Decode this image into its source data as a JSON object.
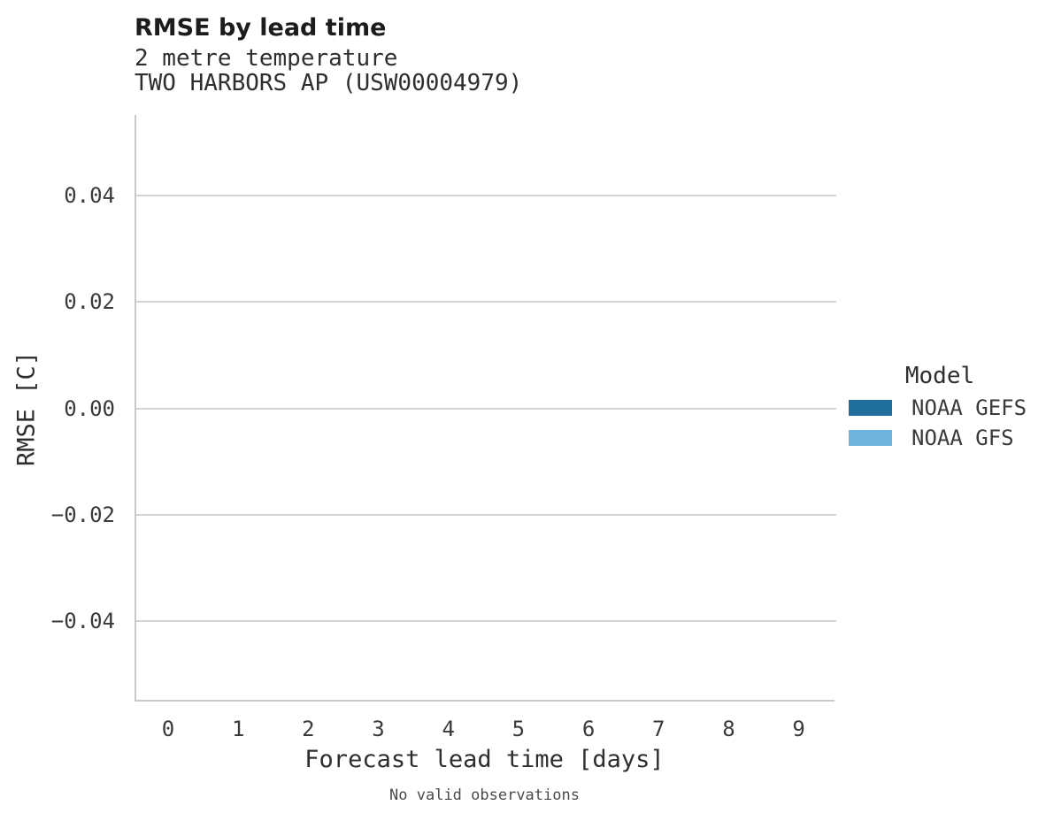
{
  "header": {
    "title": "RMSE by lead time",
    "subtitle_line1": "2 metre temperature",
    "subtitle_line2": "TWO HARBORS AP (USW00004979)"
  },
  "chart_data": {
    "type": "line",
    "title": "RMSE by lead time",
    "subtitle": [
      "2 metre temperature",
      "TWO HARBORS AP (USW00004979)"
    ],
    "xlabel": "Forecast lead time [days]",
    "ylabel": "RMSE [C]",
    "xlim": [
      -0.48,
      9.51
    ],
    "ylim": [
      -0.0551,
      0.0551
    ],
    "xticks": [
      {
        "v": 0,
        "label": "0"
      },
      {
        "v": 1,
        "label": "1"
      },
      {
        "v": 2,
        "label": "2"
      },
      {
        "v": 3,
        "label": "3"
      },
      {
        "v": 4,
        "label": "4"
      },
      {
        "v": 5,
        "label": "5"
      },
      {
        "v": 6,
        "label": "6"
      },
      {
        "v": 7,
        "label": "7"
      },
      {
        "v": 8,
        "label": "8"
      },
      {
        "v": 9,
        "label": "9"
      }
    ],
    "yticks": [
      {
        "v": 0.04,
        "label": "0.04"
      },
      {
        "v": 0.02,
        "label": "0.02"
      },
      {
        "v": 0.0,
        "label": "0.00"
      },
      {
        "v": -0.02,
        "label": "−0.02"
      },
      {
        "v": -0.04,
        "label": "−0.04"
      }
    ],
    "grid": "horizontal-only",
    "legend_position": "right-middle",
    "series": [
      {
        "name": "NOAA GEFS",
        "color": "#1f6e9c",
        "x": [],
        "y": []
      },
      {
        "name": "NOAA GFS",
        "color": "#6fb2dc",
        "x": [],
        "y": []
      }
    ],
    "annotation": "No valid observations"
  },
  "legend": {
    "title": "Model",
    "items": [
      {
        "label": "NOAA GEFS",
        "color": "#1f6e9c"
      },
      {
        "label": "NOAA GFS",
        "color": "#6fb2dc"
      }
    ]
  },
  "footer": {
    "note": "No valid observations"
  },
  "colors": {
    "grid": "#d4d4d4",
    "spine": "#c9c9c9",
    "swatch_dark": "#1f6e9c",
    "swatch_light": "#6fb2dc"
  }
}
